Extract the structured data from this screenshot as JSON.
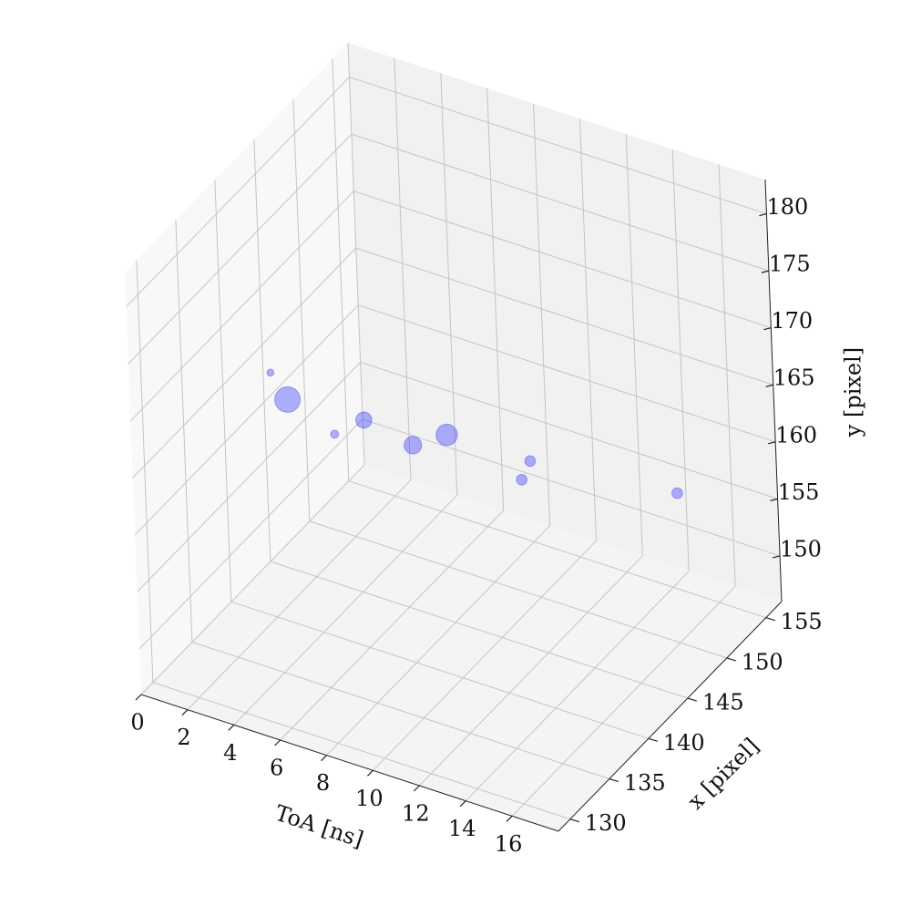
{
  "chart_data": {
    "type": "scatter3d",
    "xlabel": "ToA [ns]",
    "ylabel": "x [pixel]",
    "zlabel": "y [pixel]",
    "x": [
      2.1,
      2.8,
      4.8,
      6.1,
      8.2,
      9.7,
      13.3,
      12.9,
      15.4
    ],
    "y": [
      140,
      140,
      140,
      140,
      140,
      140,
      140,
      140,
      152
    ],
    "z": [
      167.5,
      165.6,
      163.9,
      166.0,
      165.2,
      167.1,
      167.2,
      165.3,
      157.3
    ],
    "sizes": [
      30,
      400,
      40,
      160,
      190,
      280,
      70,
      70,
      70
    ],
    "color": "#0000ff",
    "alpha": 0.3,
    "xlim": [
      0,
      18
    ],
    "xticks": [
      0,
      2,
      4,
      6,
      8,
      10,
      12,
      14,
      16
    ],
    "ylim": [
      128.5,
      157
    ],
    "yticks": [
      130,
      135,
      140,
      145,
      150,
      155
    ],
    "zlim": [
      146,
      183
    ],
    "zticks": [
      150,
      155,
      160,
      165,
      170,
      175,
      180
    ],
    "grid": true
  }
}
